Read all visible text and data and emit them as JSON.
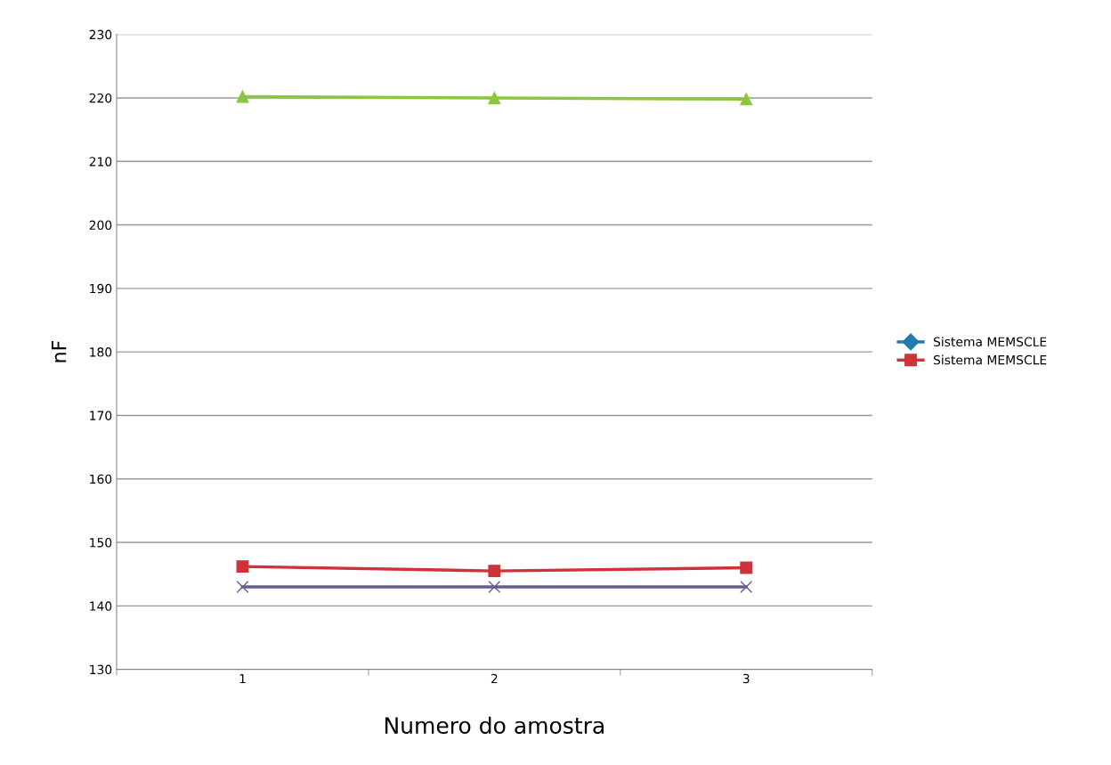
{
  "chart_data": {
    "type": "line",
    "xlabel": "Numero do amostra",
    "ylabel": "nF",
    "categories": [
      "1",
      "2",
      "3"
    ],
    "series": [
      {
        "name": "Sistema MEMSCLE",
        "color": "#1f7bb0",
        "marker": "diamond",
        "values": [
          null,
          null,
          null
        ]
      },
      {
        "name": "Sistema MEMSCLE",
        "color": "#d0323a",
        "marker": "square",
        "values": [
          146.2,
          145.5,
          146.0
        ]
      },
      {
        "color": "#8cc63f",
        "marker": "triangle",
        "values": [
          220.2,
          220.0,
          219.8
        ]
      },
      {
        "color": "#6a5a9a",
        "marker": "cross",
        "values": [
          143.0,
          143.0,
          143.0
        ]
      }
    ],
    "ylim": [
      130,
      230
    ],
    "yticks": [
      130,
      140,
      150,
      160,
      170,
      180,
      190,
      200,
      210,
      220,
      230
    ],
    "grid": "y",
    "legend": "right"
  }
}
